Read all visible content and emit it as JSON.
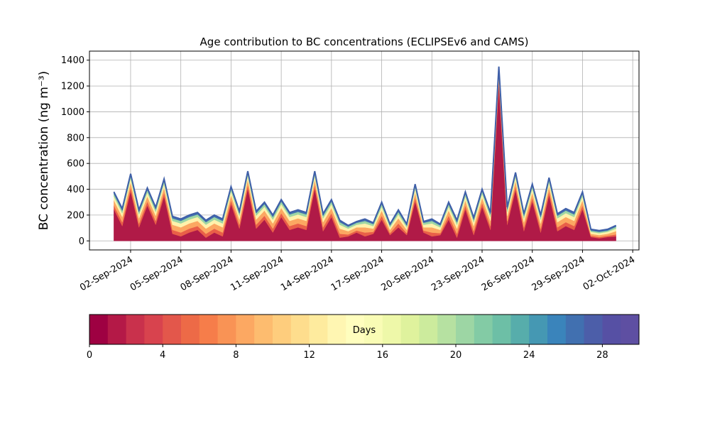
{
  "chart_data": {
    "type": "stacked_area",
    "title": "Age contribution to BC concentrations (ECLIPSEv6 and CAMS)",
    "y_label": "BC concentration (ng m⁻³)",
    "x": [
      "2024-09-01T00:00",
      "2024-09-01T12:00",
      "2024-09-02T00:00",
      "2024-09-02T12:00",
      "2024-09-03T00:00",
      "2024-09-03T12:00",
      "2024-09-04T00:00",
      "2024-09-04T12:00",
      "2024-09-05T00:00",
      "2024-09-05T12:00",
      "2024-09-06T00:00",
      "2024-09-06T12:00",
      "2024-09-07T00:00",
      "2024-09-07T12:00",
      "2024-09-08T00:00",
      "2024-09-08T12:00",
      "2024-09-09T00:00",
      "2024-09-09T12:00",
      "2024-09-10T00:00",
      "2024-09-10T12:00",
      "2024-09-11T00:00",
      "2024-09-11T12:00",
      "2024-09-12T00:00",
      "2024-09-12T12:00",
      "2024-09-13T00:00",
      "2024-09-13T12:00",
      "2024-09-14T00:00",
      "2024-09-14T12:00",
      "2024-09-15T00:00",
      "2024-09-15T12:00",
      "2024-09-16T00:00",
      "2024-09-16T12:00",
      "2024-09-17T00:00",
      "2024-09-17T12:00",
      "2024-09-18T00:00",
      "2024-09-18T12:00",
      "2024-09-19T00:00",
      "2024-09-19T12:00",
      "2024-09-20T00:00",
      "2024-09-20T12:00",
      "2024-09-21T00:00",
      "2024-09-21T12:00",
      "2024-09-22T00:00",
      "2024-09-22T12:00",
      "2024-09-23T00:00",
      "2024-09-23T12:00",
      "2024-09-24T00:00",
      "2024-09-24T12:00",
      "2024-09-25T00:00",
      "2024-09-25T12:00",
      "2024-09-26T00:00",
      "2024-09-26T12:00",
      "2024-09-27T00:00",
      "2024-09-27T12:00",
      "2024-09-28T00:00",
      "2024-09-28T12:00",
      "2024-09-29T00:00",
      "2024-09-29T12:00",
      "2024-09-30T00:00",
      "2024-09-30T12:00",
      "2024-10-01T00:00"
    ],
    "series": [
      {
        "color": "#b01a47",
        "values": [
          245,
          115,
          385,
          105,
          275,
          125,
          345,
          55,
          35,
          65,
          85,
          25,
          65,
          35,
          285,
          95,
          405,
          95,
          165,
          65,
          185,
          85,
          105,
          85,
          405,
          75,
          185,
          25,
          35,
          65,
          35,
          55,
          165,
          45,
          105,
          45,
          305,
          65,
          35,
          45,
          165,
          25,
          245,
          45,
          265,
          85,
          1215,
          125,
          395,
          75,
          305,
          65,
          355,
          75,
          115,
          85,
          245,
          30,
          20,
          30,
          35
        ]
      },
      {
        "color": "#e95f48",
        "values": [
          30,
          30,
          30,
          30,
          30,
          30,
          30,
          30,
          30,
          30,
          30,
          30,
          30,
          30,
          30,
          30,
          30,
          30,
          30,
          30,
          30,
          30,
          30,
          30,
          30,
          30,
          30,
          30,
          15,
          15,
          30,
          15,
          30,
          15,
          30,
          15,
          30,
          15,
          30,
          15,
          30,
          30,
          30,
          30,
          30,
          30,
          30,
          30,
          30,
          30,
          30,
          30,
          30,
          30,
          30,
          30,
          30,
          10,
          10,
          10,
          15
        ]
      },
      {
        "color": "#fca862",
        "values": [
          40,
          40,
          40,
          40,
          40,
          40,
          40,
          40,
          40,
          40,
          40,
          40,
          40,
          40,
          40,
          40,
          40,
          40,
          40,
          40,
          40,
          40,
          40,
          40,
          40,
          40,
          40,
          40,
          25,
          25,
          40,
          25,
          40,
          25,
          40,
          25,
          40,
          25,
          40,
          25,
          40,
          40,
          40,
          40,
          40,
          40,
          40,
          40,
          40,
          40,
          40,
          40,
          40,
          40,
          40,
          40,
          40,
          15,
          15,
          15,
          25
        ]
      },
      {
        "color": "#fff2ac",
        "values": [
          30,
          30,
          30,
          30,
          30,
          30,
          30,
          30,
          30,
          30,
          30,
          30,
          30,
          30,
          30,
          30,
          30,
          30,
          30,
          30,
          30,
          30,
          30,
          30,
          30,
          30,
          30,
          30,
          20,
          20,
          30,
          20,
          30,
          20,
          30,
          20,
          30,
          20,
          30,
          20,
          30,
          30,
          30,
          30,
          30,
          30,
          30,
          30,
          30,
          30,
          30,
          30,
          30,
          30,
          30,
          30,
          30,
          15,
          15,
          15,
          20
        ]
      },
      {
        "color": "#9dd6a4",
        "values": [
          20,
          20,
          20,
          20,
          20,
          20,
          20,
          20,
          20,
          20,
          20,
          20,
          20,
          20,
          20,
          20,
          20,
          20,
          20,
          20,
          20,
          20,
          20,
          20,
          20,
          20,
          20,
          20,
          15,
          15,
          20,
          15,
          20,
          15,
          20,
          15,
          20,
          15,
          20,
          15,
          20,
          20,
          20,
          20,
          20,
          20,
          20,
          20,
          20,
          20,
          20,
          20,
          20,
          20,
          20,
          20,
          20,
          10,
          10,
          10,
          15
        ]
      },
      {
        "color": "#4170b0",
        "values": [
          15,
          15,
          15,
          15,
          15,
          15,
          15,
          15,
          15,
          15,
          15,
          15,
          15,
          15,
          15,
          15,
          15,
          15,
          15,
          15,
          15,
          15,
          15,
          15,
          15,
          15,
          15,
          15,
          10,
          10,
          15,
          10,
          15,
          10,
          15,
          10,
          15,
          10,
          15,
          10,
          15,
          15,
          15,
          15,
          15,
          15,
          15,
          15,
          15,
          15,
          15,
          15,
          15,
          15,
          15,
          15,
          15,
          10,
          10,
          10,
          10
        ]
      }
    ],
    "top_line_color": "#3f5fa8",
    "xlim": [
      "2024-08-30T13:00",
      "2024-10-02T09:00"
    ],
    "xticks": [
      {
        "value": "2024-09-02T00:00",
        "label": "02-Sep-2024"
      },
      {
        "value": "2024-09-05T00:00",
        "label": "05-Sep-2024"
      },
      {
        "value": "2024-09-08T00:00",
        "label": "08-Sep-2024"
      },
      {
        "value": "2024-09-11T00:00",
        "label": "11-Sep-2024"
      },
      {
        "value": "2024-09-14T00:00",
        "label": "14-Sep-2024"
      },
      {
        "value": "2024-09-17T00:00",
        "label": "17-Sep-2024"
      },
      {
        "value": "2024-09-20T00:00",
        "label": "20-Sep-2024"
      },
      {
        "value": "2024-09-23T00:00",
        "label": "23-Sep-2024"
      },
      {
        "value": "2024-09-26T00:00",
        "label": "26-Sep-2024"
      },
      {
        "value": "2024-09-29T00:00",
        "label": "29-Sep-2024"
      },
      {
        "value": "2024-10-02T00:00",
        "label": "02-Oct-2024"
      }
    ],
    "ylim": [
      -70,
      1470
    ],
    "yticks": [
      0,
      200,
      400,
      600,
      800,
      1000,
      1200,
      1400
    ],
    "grid": true,
    "colorbar": {
      "label": "Days",
      "lim": [
        0,
        30
      ],
      "ticks": [
        0,
        4,
        8,
        12,
        16,
        20,
        24,
        28
      ],
      "colors": [
        "#9e0142",
        "#b41947",
        "#c9314c",
        "#d8434e",
        "#e3574b",
        "#ed6a47",
        "#f67d4a",
        "#f99355",
        "#fca862",
        "#fdbc6f",
        "#fecd7d",
        "#fedd8d",
        "#feeb9e",
        "#fff6b2",
        "#fffebe",
        "#f9fcb5",
        "#eef8a9",
        "#dff29d",
        "#cceb9d",
        "#b6e1a1",
        "#9dd6a4",
        "#83cba5",
        "#6dbfa6",
        "#57adab",
        "#4598b3",
        "#3a84bb",
        "#4170b0",
        "#4c5ea9",
        "#5650a4",
        "#5e4fa2"
      ]
    }
  }
}
